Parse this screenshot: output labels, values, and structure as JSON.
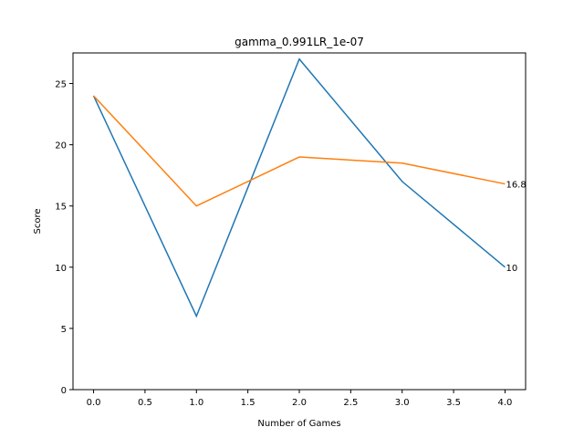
{
  "chart_data": {
    "type": "line",
    "title": "gamma_0.991LR_1e-07",
    "xlabel": "Number of Games",
    "ylabel": "Score",
    "xlim": [
      -0.2,
      4.2
    ],
    "ylim": [
      0,
      27.5
    ],
    "xticks": [
      0.0,
      0.5,
      1.0,
      1.5,
      2.0,
      2.5,
      3.0,
      3.5,
      4.0
    ],
    "xtick_labels": [
      "0.0",
      "0.5",
      "1.0",
      "1.5",
      "2.0",
      "2.5",
      "3.0",
      "3.5",
      "4.0"
    ],
    "yticks": [
      0,
      5,
      10,
      15,
      20,
      25
    ],
    "ytick_labels": [
      "0",
      "5",
      "10",
      "15",
      "20",
      "25"
    ],
    "grid": false,
    "series": [
      {
        "color": "#1f77b4",
        "x": [
          0,
          1,
          2,
          3,
          4
        ],
        "y": [
          24,
          6,
          27,
          17,
          10
        ],
        "end_label": "10"
      },
      {
        "color": "#ff7f0e",
        "x": [
          0,
          1,
          2,
          3,
          4
        ],
        "y": [
          24,
          15,
          19,
          18.5,
          16.8
        ],
        "end_label": "16.8"
      }
    ]
  }
}
